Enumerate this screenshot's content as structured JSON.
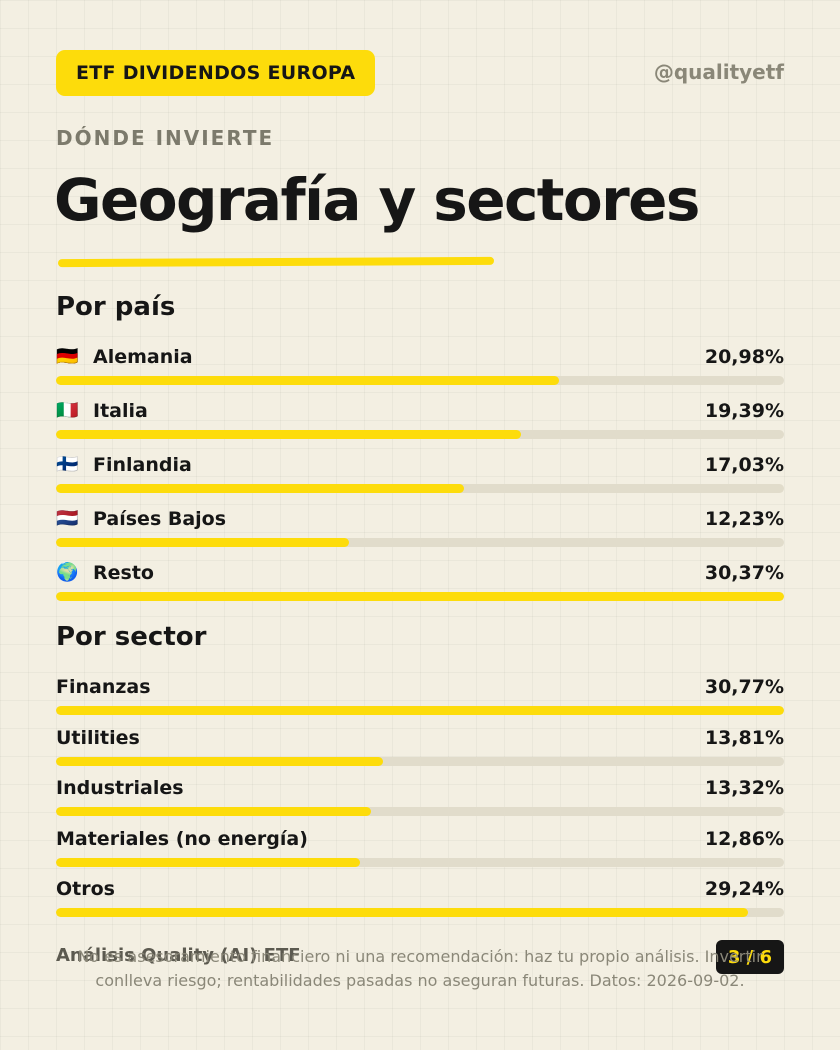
{
  "header": {
    "badge": "ETF DIVIDENDOS EUROPA",
    "handle": "@qualityetf",
    "kicker": "DÓNDE INVIERTE",
    "title": "Geografía y sectores"
  },
  "countries": {
    "title": "Por país",
    "items": [
      {
        "flag": "🇩🇪",
        "name": "Alemania",
        "value": 20.98,
        "label": "20,98%"
      },
      {
        "flag": "🇮🇹",
        "name": "Italia",
        "value": 19.39,
        "label": "19,39%"
      },
      {
        "flag": "🇫🇮",
        "name": "Finlandia",
        "value": 17.03,
        "label": "17,03%"
      },
      {
        "flag": "🇳🇱",
        "name": "Países Bajos",
        "value": 12.23,
        "label": "12,23%"
      },
      {
        "flag": "🌍",
        "name": "Resto",
        "value": 30.37,
        "label": "30,37%"
      }
    ]
  },
  "sectors": {
    "title": "Por sector",
    "items": [
      {
        "name": "Finanzas",
        "value": 30.77,
        "label": "30,77%"
      },
      {
        "name": "Utilities",
        "value": 13.81,
        "label": "13,81%"
      },
      {
        "name": "Industriales",
        "value": 13.32,
        "label": "13,32%"
      },
      {
        "name": "Materiales (no energía)",
        "value": 12.86,
        "label": "12,86%"
      },
      {
        "name": "Otros",
        "value": 29.24,
        "label": "29,24%"
      }
    ]
  },
  "footer": {
    "left": "Análisis Quality (AI) ETF",
    "page": "3 / 6",
    "disclaimer": "No es asesoramiento financiero ni una recomendación: haz tu propio análisis. Invertir conlleva riesgo; rentabilidades pasadas no aseguran futuras. Datos: 2026-09-02."
  },
  "colors": {
    "accent": "#fddc0b",
    "background": "#f3efe2",
    "track": "#e1dccb",
    "text": "#161616"
  }
}
